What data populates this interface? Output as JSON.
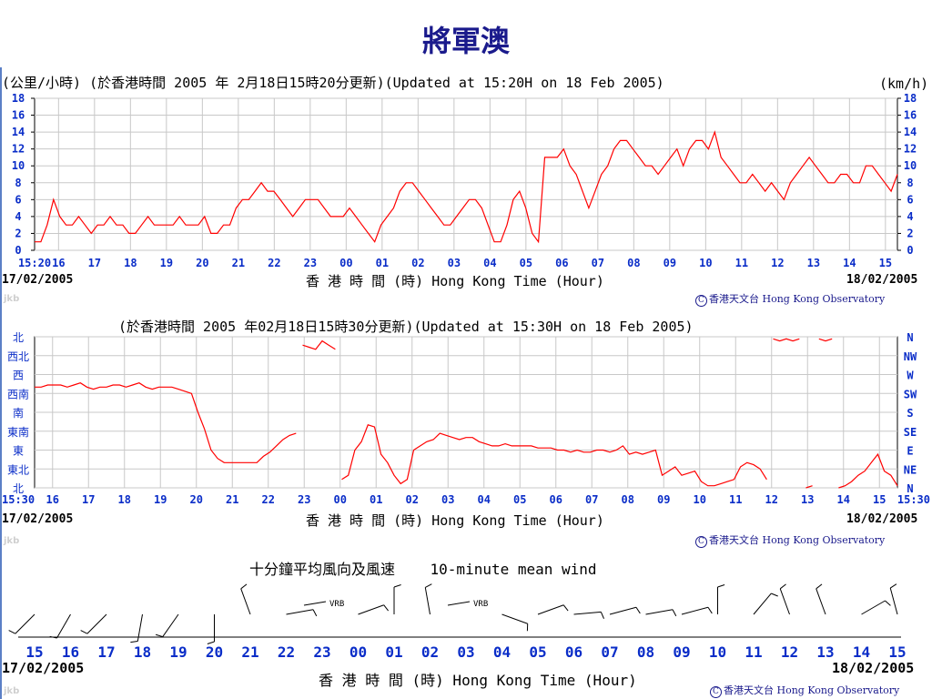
{
  "page_title": "將軍澳",
  "speed_chart": {
    "header_left": "(公里/小時) (於香港時間 2005 年 2月18日15時20分更新)(Updated at 15:20H on 18 Feb 2005)",
    "unit_right": "(km/h)",
    "caption": "香 港 時 間 (時) Hong Kong Time (Hour)",
    "date_left": "17/02/2005",
    "date_right": "18/02/2005",
    "credit": "香港天文台 Hong Kong Observatory",
    "watermark": "jkb"
  },
  "direction_chart": {
    "header": "(於香港時間 2005 年02月18日15時30分更新)(Updated at 15:30H on 18 Feb 2005)",
    "caption": "香 港 時 間 (時) Hong Kong Time (Hour)",
    "date_left": "17/02/2005",
    "date_right": "18/02/2005",
    "credit": "香港天文台 Hong Kong Observatory",
    "watermark": "jkb"
  },
  "wind_barbs": {
    "title": "十分鐘平均風向及風速    10-minute mean wind",
    "caption": "香 港 時 間 (時) Hong Kong Time (Hour)",
    "date_left": "17/02/2005",
    "date_right": "18/02/2005",
    "credit": "香港天文台 Hong Kong Observatory",
    "watermark": "jkb",
    "x_labels": [
      "15",
      "16",
      "17",
      "18",
      "19",
      "20",
      "21",
      "22",
      "23",
      "00",
      "01",
      "02",
      "03",
      "04",
      "05",
      "06",
      "07",
      "08",
      "09",
      "10",
      "11",
      "12",
      "13",
      "14",
      "15"
    ],
    "vrb_label": "VRB",
    "barbs": [
      {
        "hour": "15",
        "dir": 225,
        "kmh": 9
      },
      {
        "hour": "16",
        "dir": 210,
        "kmh": 8
      },
      {
        "hour": "17",
        "dir": 225,
        "kmh": 8
      },
      {
        "hour": "18",
        "dir": 190,
        "kmh": 7
      },
      {
        "hour": "19",
        "dir": 215,
        "kmh": 6
      },
      {
        "hour": "20",
        "dir": 180,
        "kmh": 5
      },
      {
        "hour": "21",
        "dir": 340,
        "kmh": 5
      },
      {
        "hour": "22",
        "dir": 80,
        "kmh": 5
      },
      {
        "hour": "23",
        "dir": "VRB",
        "kmh": 3
      },
      {
        "hour": "00",
        "dir": 70,
        "kmh": 3
      },
      {
        "hour": "01",
        "dir": 0,
        "kmh": 5
      },
      {
        "hour": "02",
        "dir": 350,
        "kmh": 5
      },
      {
        "hour": "03",
        "dir": "VRB",
        "kmh": 2
      },
      {
        "hour": "04",
        "dir": 110,
        "kmh": 9
      },
      {
        "hour": "05",
        "dir": 70,
        "kmh": 11
      },
      {
        "hour": "06",
        "dir": 85,
        "kmh": 11
      },
      {
        "hour": "07",
        "dir": 75,
        "kmh": 11
      },
      {
        "hour": "08",
        "dir": 80,
        "kmh": 11
      },
      {
        "hour": "09",
        "dir": 75,
        "kmh": 11
      },
      {
        "hour": "10",
        "dir": 0,
        "kmh": 10
      },
      {
        "hour": "11",
        "dir": 40,
        "kmh": 9
      },
      {
        "hour": "12",
        "dir": 340,
        "kmh": 9
      },
      {
        "hour": "13",
        "dir": 340,
        "kmh": 9
      },
      {
        "hour": "14",
        "dir": 60,
        "kmh": 9
      },
      {
        "hour": "15",
        "dir": 345,
        "kmh": 8
      }
    ]
  },
  "chart_data": [
    {
      "type": "line",
      "title": "",
      "xlabel": "香 港 時 間 (時) Hong Kong Time (Hour)",
      "ylabel": "(公里/小時)",
      "y2label": "(km/h)",
      "ylim": [
        0,
        18
      ],
      "yticks": [
        0,
        2,
        4,
        6,
        8,
        10,
        12,
        14,
        16,
        18
      ],
      "x_tick_labels": [
        "15:20",
        "16",
        "17",
        "18",
        "19",
        "20",
        "21",
        "22",
        "23",
        "00",
        "01",
        "02",
        "03",
        "04",
        "05",
        "06",
        "07",
        "08",
        "09",
        "10",
        "11",
        "12",
        "13",
        "14",
        "15"
      ],
      "grid": true,
      "line_color": "#ff0000",
      "series": [
        {
          "x_hours_label": "hours after 15:20 17/02/2005",
          "values": [
            1,
            1,
            3,
            6,
            4,
            3,
            3,
            4,
            3,
            2,
            3,
            3,
            4,
            3,
            3,
            2,
            2,
            3,
            4,
            3,
            3,
            3,
            3,
            4,
            3,
            3,
            3,
            4,
            2,
            2,
            3,
            3,
            5,
            6,
            6,
            7,
            8,
            7,
            7,
            6,
            5,
            4,
            5,
            6,
            6,
            6,
            5,
            4,
            4,
            4,
            5,
            4,
            3,
            2,
            1,
            3,
            4,
            5,
            7,
            8,
            8,
            7,
            6,
            5,
            4,
            3,
            3,
            4,
            5,
            6,
            6,
            5,
            3,
            1,
            1,
            3,
            6,
            7,
            5,
            2,
            1,
            11,
            11,
            11,
            12,
            10,
            9,
            7,
            5,
            7,
            9,
            10,
            12,
            13,
            13,
            12,
            11,
            10,
            10,
            9,
            10,
            11,
            12,
            10,
            12,
            13,
            13,
            12,
            14,
            11,
            10,
            9,
            8,
            8,
            9,
            8,
            7,
            8,
            7,
            6,
            8,
            9,
            10,
            11,
            10,
            9,
            8,
            8,
            9,
            9,
            8,
            8,
            10,
            10,
            9,
            8,
            7,
            9
          ]
        }
      ]
    },
    {
      "type": "line",
      "title": "",
      "xlabel": "香 港 時 間 (時) Hong Kong Time (Hour)",
      "y_categories_zh": [
        "北",
        "西北",
        "西",
        "西南",
        "南",
        "東南",
        "東",
        "東北",
        "北"
      ],
      "y_categories_en": [
        "N",
        "NW",
        "W",
        "SW",
        "S",
        "SE",
        "E",
        "NE",
        "N"
      ],
      "x_tick_labels": [
        "15:30",
        "16",
        "17",
        "18",
        "19",
        "20",
        "21",
        "22",
        "23",
        "00",
        "01",
        "02",
        "03",
        "04",
        "05",
        "06",
        "07",
        "08",
        "09",
        "10",
        "11",
        "12",
        "13",
        "14",
        "15",
        "15:30"
      ],
      "grid": true,
      "line_color": "#ff0000",
      "series": [
        {
          "name": "",
          "direction_deg": [
            240,
            240,
            245,
            245,
            245,
            240,
            245,
            250,
            240,
            235,
            240,
            240,
            245,
            245,
            240,
            245,
            250,
            240,
            235,
            240,
            240,
            240,
            235,
            230,
            225,
            180,
            140,
            90,
            70,
            60,
            60,
            60,
            60,
            60,
            60,
            75,
            85,
            100,
            115,
            125,
            130,
            340,
            335,
            330,
            350,
            340,
            330,
            20,
            30,
            90,
            110,
            150,
            145,
            80,
            60,
            30,
            10,
            20,
            90,
            100,
            110,
            115,
            130,
            125,
            120,
            115,
            120,
            120,
            110,
            105,
            100,
            100,
            105,
            100,
            100,
            100,
            100,
            95,
            95,
            95,
            90,
            90,
            85,
            90,
            85,
            85,
            90,
            90,
            85,
            90,
            100,
            80,
            85,
            80,
            85,
            90,
            30,
            40,
            50,
            30,
            35,
            40,
            15,
            5,
            5,
            10,
            15,
            20,
            50,
            60,
            55,
            45,
            20,
            355,
            350,
            355,
            350,
            355,
            0,
            5,
            355,
            350,
            355,
            0,
            5,
            15,
            30,
            40,
            60,
            80,
            40,
            30,
            5
          ]
        }
      ]
    }
  ]
}
